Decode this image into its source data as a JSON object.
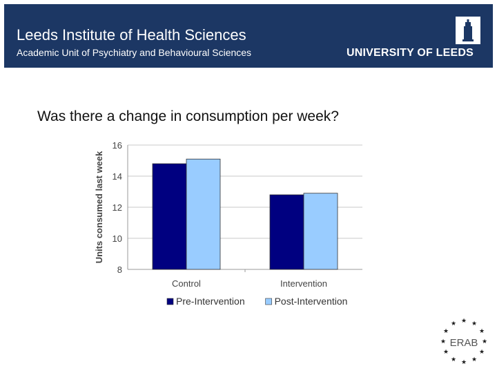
{
  "header": {
    "title": "Leeds Institute of Health Sciences",
    "subtitle": "Academic Unit of Psychiatry and Behavioural Sciences",
    "logo_text": "UNIVERSITY OF LEEDS",
    "background_color": "#1c3764"
  },
  "slide": {
    "question": "Was there a change in consumption per week?"
  },
  "erab_logo": {
    "text": "ERAB"
  },
  "chart_data": {
    "type": "bar",
    "title": "",
    "xlabel": "",
    "ylabel": "Units consumed last week",
    "ylim": [
      8,
      16
    ],
    "yticks": [
      8,
      10,
      12,
      14,
      16
    ],
    "grid": true,
    "legend_position": "bottom",
    "categories": [
      "Control",
      "Intervention"
    ],
    "series": [
      {
        "name": "Pre-Intervention",
        "color": "#000080",
        "values": [
          14.8,
          12.8
        ]
      },
      {
        "name": "Post-Intervention",
        "color": "#99ccff",
        "values": [
          15.1,
          12.9
        ]
      }
    ]
  }
}
